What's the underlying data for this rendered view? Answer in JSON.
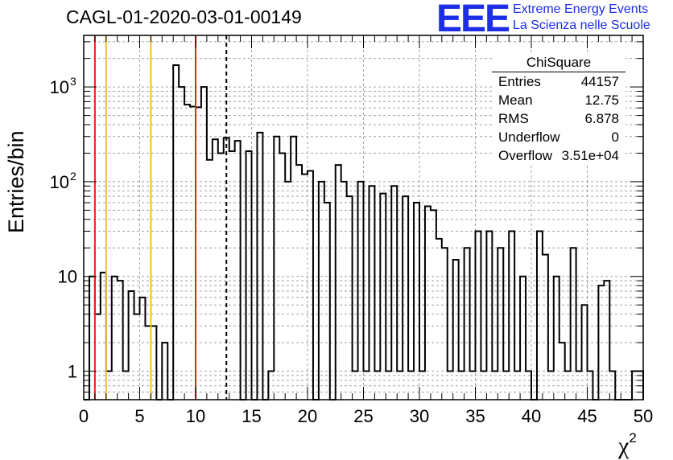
{
  "title": "CAGL-01-2020-03-01-00149",
  "logo": {
    "mark": "EEE",
    "line1": "Extreme Energy Events",
    "line2": "La Scienza nelle Scuole",
    "color": "#1d2ee6"
  },
  "stats_box": {
    "title": "ChiSquare",
    "rows": [
      {
        "label": "Entries",
        "value": "44157"
      },
      {
        "label": "Mean",
        "value": "12.75"
      },
      {
        "label": "RMS",
        "value": "6.878"
      },
      {
        "label": "Underflow",
        "value": "0"
      },
      {
        "label": "Overflow",
        "value": "3.51e+04"
      }
    ]
  },
  "chart_data": {
    "type": "bar",
    "style": "step-histogram",
    "xlabel": "χ",
    "xlabel_superscript": "2",
    "ylabel": "Entries/bin",
    "xlim": [
      0,
      50
    ],
    "ylim": [
      0.5,
      3500
    ],
    "y_scale": "log",
    "grid": true,
    "bin_width": 0.5,
    "x_ticks": [
      "0",
      "5",
      "10",
      "15",
      "20",
      "25",
      "30",
      "35",
      "40",
      "45",
      "50"
    ],
    "y_ticks": [
      {
        "value": 1,
        "label": "1"
      },
      {
        "value": 10,
        "label": "10"
      },
      {
        "value": 100,
        "label": "10",
        "exp": "2"
      },
      {
        "value": 1000,
        "label": "10",
        "exp": "3"
      }
    ],
    "values": [
      0,
      10,
      4,
      11,
      1,
      10,
      9,
      1,
      7,
      4,
      6,
      3,
      3,
      0,
      2,
      0,
      1700,
      1000,
      650,
      620,
      610,
      1000,
      170,
      280,
      200,
      290,
      210,
      270,
      0,
      210,
      0,
      330,
      0,
      1,
      300,
      200,
      100,
      300,
      150,
      120,
      130,
      0,
      100,
      60,
      0,
      150,
      100,
      70,
      1,
      100,
      1,
      90,
      1,
      75,
      1,
      90,
      1,
      70,
      1,
      60,
      1,
      55,
      50,
      25,
      20,
      1,
      15,
      1,
      20,
      1,
      30,
      1,
      30,
      1,
      20,
      1,
      30,
      1,
      10,
      1,
      0,
      30,
      17,
      1,
      10,
      2,
      1,
      20,
      1,
      5,
      1,
      0,
      8,
      9,
      1,
      0,
      0,
      0,
      1,
      1
    ],
    "vertical_lines": [
      {
        "x": 1,
        "color": "#e8221a",
        "style": "solid"
      },
      {
        "x": 2,
        "color": "#f2c11a",
        "style": "solid"
      },
      {
        "x": 6,
        "color": "#f2c11a",
        "style": "solid"
      },
      {
        "x": 10,
        "color": "#e8221a",
        "style": "solid"
      },
      {
        "x": 12.75,
        "color": "#000000",
        "style": "dashed"
      }
    ]
  }
}
